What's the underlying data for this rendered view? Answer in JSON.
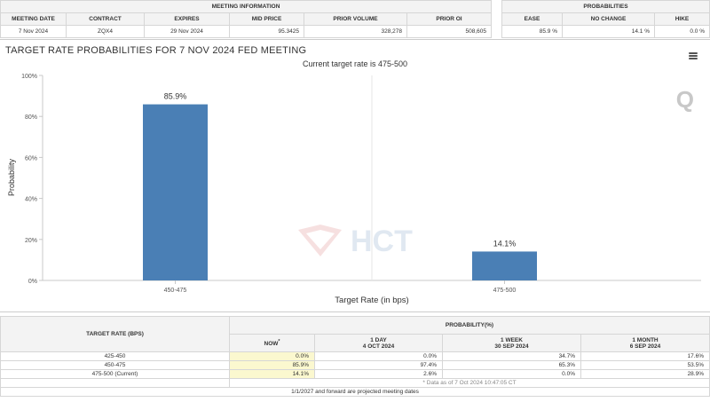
{
  "meeting_info": {
    "section_title": "MEETING INFORMATION",
    "headers": [
      "MEETING DATE",
      "CONTRACT",
      "EXPIRES",
      "MID PRICE",
      "PRIOR VOLUME",
      "PRIOR OI"
    ],
    "row": [
      "7 Nov 2024",
      "ZQX4",
      "29 Nov 2024",
      "95.3425",
      "328,278",
      "508,605"
    ]
  },
  "probabilities": {
    "section_title": "PROBABILITIES",
    "headers": [
      "EASE",
      "NO CHANGE",
      "HIKE"
    ],
    "row": [
      "85.9 %",
      "14.1 %",
      "0.0 %"
    ]
  },
  "chart": {
    "title": "TARGET RATE PROBABILITIES FOR 7 NOV 2024 FED MEETING",
    "subtitle": "Current target rate is 475-500",
    "watermark": "HCT"
  },
  "chart_data": {
    "type": "bar",
    "categories": [
      "450-475",
      "475-500"
    ],
    "values": [
      85.9,
      14.1
    ],
    "data_labels": [
      "85.9%",
      "14.1%"
    ],
    "title": "TARGET RATE PROBABILITIES FOR 7 NOV 2024 FED MEETING",
    "subtitle": "Current target rate is 475-500",
    "xlabel": "Target Rate (in bps)",
    "ylabel": "Probability",
    "ylim": [
      0,
      100
    ],
    "yticks": [
      "0%",
      "20%",
      "40%",
      "60%",
      "80%",
      "100%"
    ],
    "bar_color": "#4a7fb5",
    "grid": "vertical-lines"
  },
  "history": {
    "col_target": "TARGET RATE (BPS)",
    "col_prob": "PROBABILITY(%)",
    "periods": [
      {
        "label": "NOW",
        "marker": "*",
        "date": ""
      },
      {
        "label": "1 DAY",
        "date": "4 OCT 2024"
      },
      {
        "label": "1 WEEK",
        "date": "30 SEP 2024"
      },
      {
        "label": "1 MONTH",
        "date": "6 SEP 2024"
      }
    ],
    "rows": [
      {
        "rate": "425-450",
        "values": [
          "0.0%",
          "0.0%",
          "34.7%",
          "17.6%"
        ]
      },
      {
        "rate": "450-475",
        "values": [
          "85.9%",
          "97.4%",
          "65.3%",
          "53.5%"
        ]
      },
      {
        "rate": "475-500 (Current)",
        "values": [
          "14.1%",
          "2.6%",
          "0.0%",
          "28.9%"
        ]
      }
    ],
    "note": "* Data as of 7 Oct 2024 10:47:05 CT",
    "footer": "1/1/2027 and forward are projected meeting dates"
  },
  "colors": {
    "bar": "#4a7fb5",
    "now_highlight": "#fbf8cf",
    "header_bg": "#f3f3f3"
  }
}
